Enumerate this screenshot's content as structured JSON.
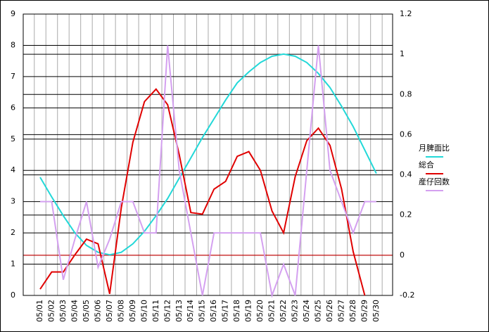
{
  "chart_data": {
    "type": "line",
    "categories": [
      "05/01",
      "05/02",
      "05/03",
      "05/04",
      "05/05",
      "05/06",
      "05/07",
      "05/08",
      "05/09",
      "05/10",
      "05/11",
      "05/12",
      "05/13",
      "05/14",
      "05/15",
      "05/16",
      "05/17",
      "05/18",
      "05/19",
      "05/20",
      "05/21",
      "05/22",
      "05/23",
      "05/24",
      "05/25",
      "05/26",
      "05/27",
      "05/28",
      "05/29",
      "05/30"
    ],
    "series": [
      {
        "name": "月脾面比",
        "color": "#22d8d8",
        "values": [
          3.78,
          3.15,
          2.55,
          2.0,
          1.6,
          1.38,
          1.3,
          1.38,
          1.65,
          2.05,
          2.55,
          3.1,
          3.75,
          4.4,
          5.05,
          5.65,
          6.25,
          6.8,
          7.15,
          7.45,
          7.65,
          7.72,
          7.65,
          7.45,
          7.1,
          6.65,
          6.05,
          5.4,
          4.65,
          3.9
        ]
      },
      {
        "name": "総合",
        "color": "#e00000",
        "values": [
          0.2,
          0.75,
          0.75,
          1.3,
          1.8,
          1.65,
          0.05,
          2.8,
          4.9,
          6.2,
          6.6,
          6.1,
          4.5,
          2.65,
          2.6,
          3.4,
          3.65,
          4.45,
          4.6,
          4.0,
          2.7,
          2.0,
          3.8,
          4.95,
          5.35,
          4.8,
          3.4,
          1.4,
          0,
          null
        ]
      },
      {
        "name": "産仔回数",
        "color": "#d4a0f0",
        "values": [
          3,
          3,
          0.5,
          1.8,
          3,
          0.9,
          1.8,
          3,
          3,
          2,
          2,
          8,
          4,
          2,
          0,
          2,
          2,
          2,
          2,
          2,
          0,
          1,
          0,
          4,
          8,
          4,
          3,
          2,
          3,
          3
        ]
      }
    ],
    "ylim": [
      0,
      9
    ],
    "yticks": [
      0,
      1,
      2,
      3,
      4,
      5,
      6,
      7,
      8,
      9
    ],
    "y2lim": [
      -0.2,
      1.2
    ],
    "y2ticks": [
      -0.2,
      0,
      0.2,
      0.4,
      0.6,
      0.8,
      1,
      1.2
    ],
    "grid": true
  }
}
